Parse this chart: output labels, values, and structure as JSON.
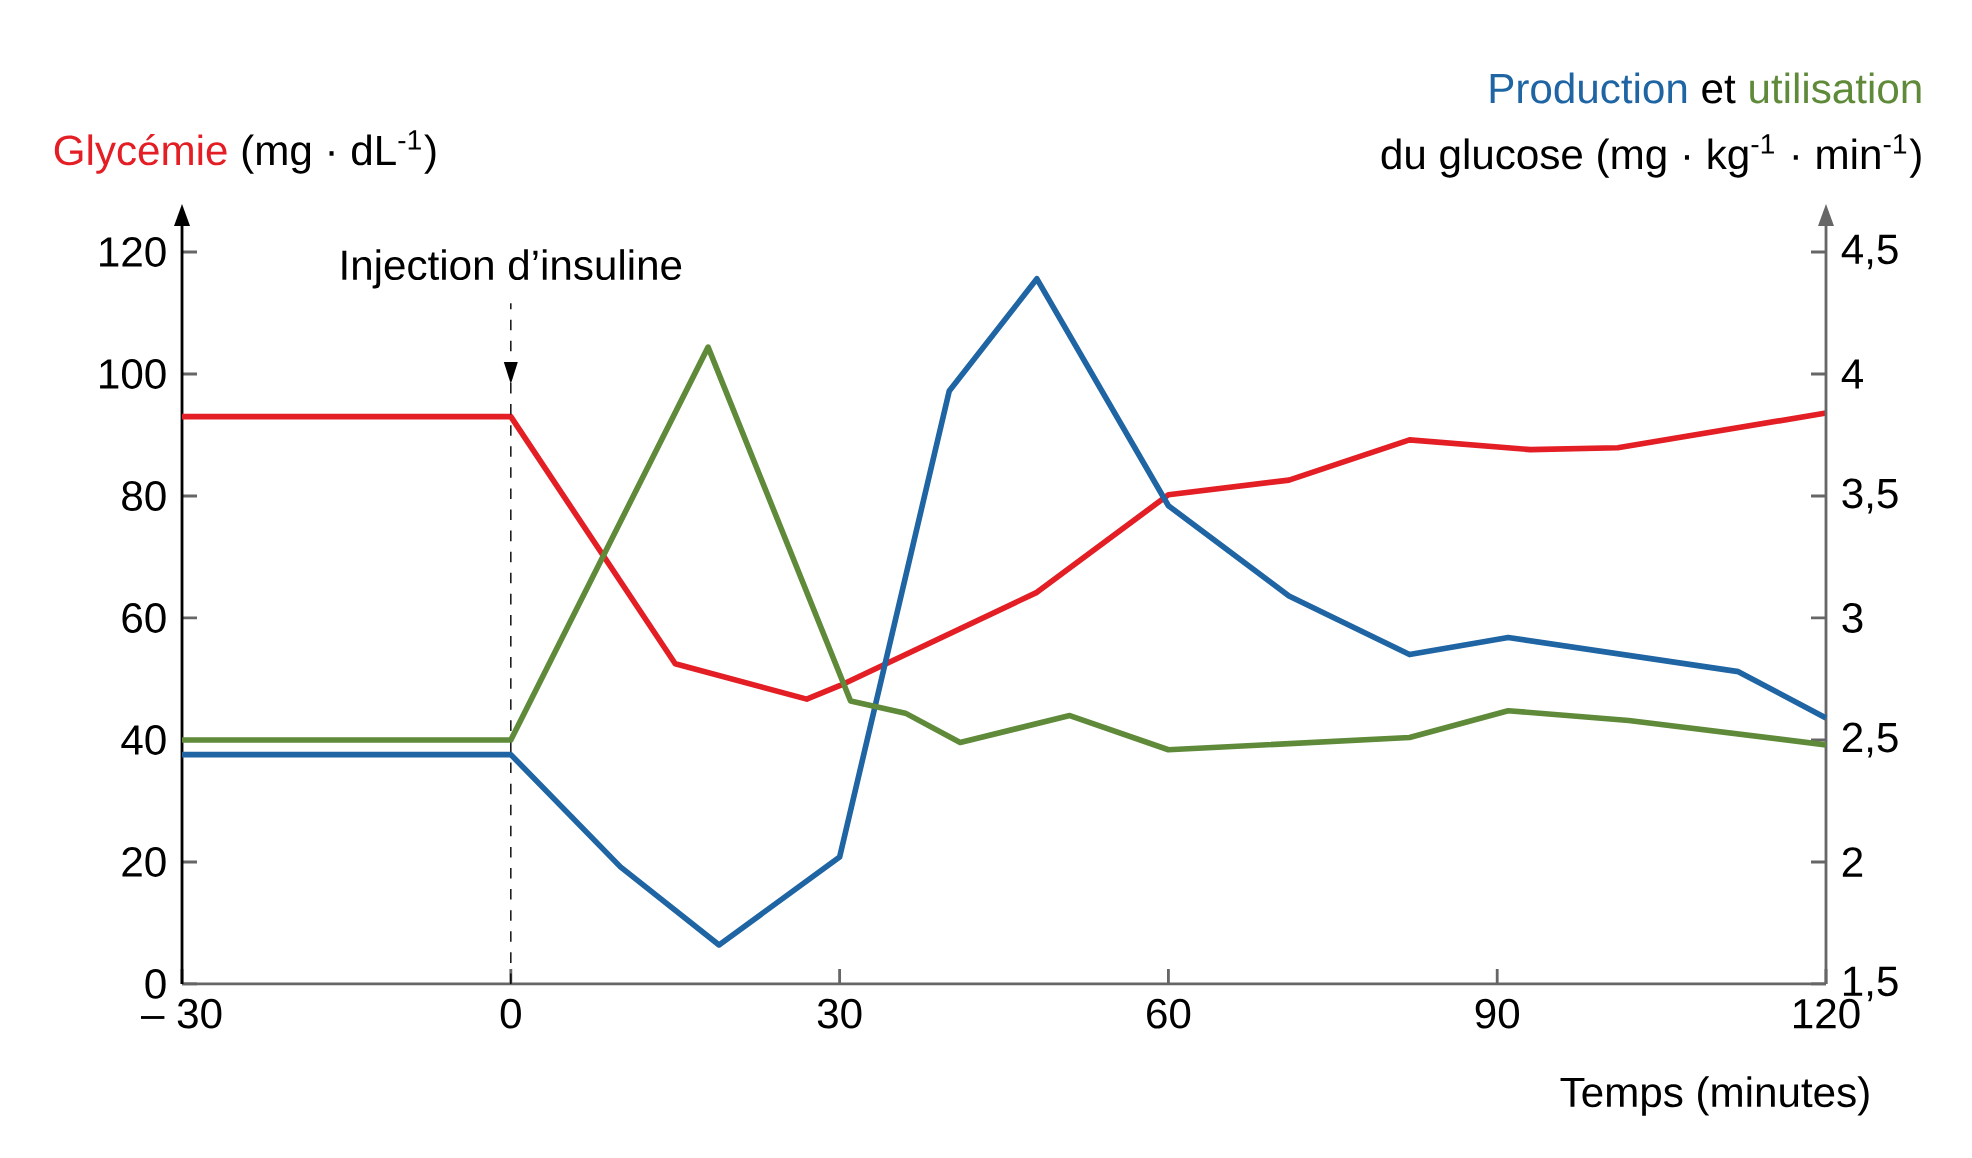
{
  "chart_data": {
    "type": "line",
    "xlabel": "Temps (minutes)",
    "ylabel": "(mg · dL$^{-1}$)",
    "y2label": "du glucose (mg · kg$^{-1}$ · min$^{-1}$)",
    "annotations": [
      "et"
    ],
    "xlim": [
      -30,
      120
    ],
    "xticks": [
      {
        "value": -30,
        "label": "– 30"
      },
      0,
      30,
      60,
      90,
      120
    ],
    "ylim": [
      0,
      120
    ],
    "yticks": [
      0,
      20,
      40,
      60,
      80,
      100,
      120
    ],
    "y2lim": [
      1.5,
      4.5
    ],
    "y2ticks": [
      {
        "value": 1.5,
        "label": "1,5"
      },
      2,
      {
        "value": 2.5,
        "label": "2,5"
      },
      3,
      {
        "value": 3.5,
        "label": "3,5"
      },
      4,
      {
        "value": 4.5,
        "label": "4,5"
      }
    ],
    "ref_lines": [
      {
        "axis": "x",
        "value": 0,
        "label": "Injection d’insuline",
        "line_style": "dashed",
        "color": "#000000"
      }
    ],
    "series": [
      {
        "name": "Glycémie",
        "color": "#e31e24",
        "x": [
          -30,
          0,
          15,
          27,
          30,
          48,
          60,
          71,
          82,
          93,
          101,
          120
        ],
        "values": [
          93,
          93,
          52.5,
          46.7,
          48.9,
          64.2,
          80.2,
          82.6,
          89.2,
          87.6,
          87.9,
          93.6
        ]
      },
      {
        "name": "Production",
        "color": "#1f65a4",
        "axis": "y2",
        "x": [
          -30,
          0,
          10,
          19,
          30,
          40,
          48,
          60,
          71,
          82,
          91,
          112,
          120
        ],
        "values": [
          2.44,
          2.44,
          1.98,
          1.66,
          2.02,
          3.93,
          4.39,
          3.46,
          3.09,
          2.85,
          2.92,
          2.78,
          2.59
        ]
      },
      {
        "name": "utilisation",
        "color": "#5f8a3a",
        "axis": "y2",
        "x": [
          -30,
          0,
          18,
          31,
          36,
          41,
          51,
          60,
          82,
          91,
          102,
          120
        ],
        "values": [
          2.5,
          2.5,
          4.11,
          2.66,
          2.61,
          2.49,
          2.6,
          2.46,
          2.51,
          2.62,
          2.58,
          2.48
        ]
      }
    ]
  }
}
